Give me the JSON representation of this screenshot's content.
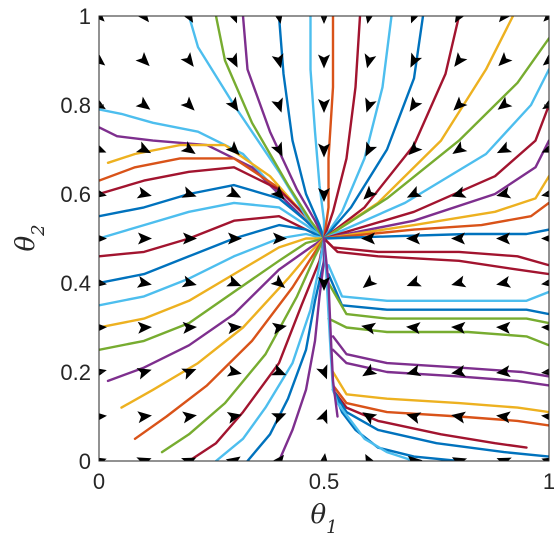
{
  "chart_data": {
    "type": "line",
    "subtype": "phase-portrait",
    "title": "",
    "xlabel": {
      "symbol": "θ",
      "subscript": "1"
    },
    "ylabel": {
      "symbol": "θ",
      "subscript": "2"
    },
    "xlim": [
      0,
      1
    ],
    "ylim": [
      0,
      1
    ],
    "xticks": [
      "0",
      "0.5",
      "1"
    ],
    "yticks": [
      "0",
      "0.2",
      "0.4",
      "0.6",
      "0.8",
      "1"
    ],
    "xtick_values": [
      0,
      0.5,
      1
    ],
    "ytick_values": [
      0,
      0.2,
      0.4,
      0.6,
      0.8,
      1
    ],
    "grid": false,
    "legend": "none",
    "fixed_points": [
      [
        0.5,
        0.5
      ],
      [
        0.5,
        0.32
      ],
      [
        0.52,
        0.15
      ]
    ],
    "colors": [
      "#0072BD",
      "#D95319",
      "#EDB120",
      "#7E2F8E",
      "#77AC30",
      "#4DBEEE",
      "#A2142F"
    ],
    "series": [
      {
        "color": "#4DBEEE",
        "x": [
          0.0,
          0.05,
          0.12,
          0.22,
          0.32,
          0.42,
          0.5
        ],
        "y": [
          0.79,
          0.78,
          0.76,
          0.74,
          0.69,
          0.58,
          0.5
        ]
      },
      {
        "color": "#7E2F8E",
        "x": [
          0.0,
          0.04,
          0.12,
          0.24,
          0.34,
          0.43,
          0.5
        ],
        "y": [
          0.75,
          0.73,
          0.72,
          0.71,
          0.66,
          0.57,
          0.5
        ]
      },
      {
        "color": "#EDB120",
        "x": [
          0.02,
          0.08,
          0.18,
          0.28,
          0.38,
          0.45,
          0.5
        ],
        "y": [
          0.67,
          0.69,
          0.71,
          0.71,
          0.64,
          0.56,
          0.5
        ]
      },
      {
        "color": "#D95319",
        "x": [
          0.0,
          0.08,
          0.18,
          0.3,
          0.39,
          0.46,
          0.5
        ],
        "y": [
          0.63,
          0.66,
          0.68,
          0.68,
          0.62,
          0.55,
          0.5
        ]
      },
      {
        "color": "#A2142F",
        "x": [
          0.0,
          0.1,
          0.2,
          0.3,
          0.4,
          0.46,
          0.5
        ],
        "y": [
          0.6,
          0.63,
          0.65,
          0.66,
          0.61,
          0.55,
          0.5
        ]
      },
      {
        "color": "#0072BD",
        "x": [
          0.0,
          0.1,
          0.2,
          0.3,
          0.4,
          0.46,
          0.5
        ],
        "y": [
          0.55,
          0.57,
          0.6,
          0.62,
          0.59,
          0.54,
          0.5
        ]
      },
      {
        "color": "#4DBEEE",
        "x": [
          0.0,
          0.1,
          0.2,
          0.3,
          0.4,
          0.46,
          0.5
        ],
        "y": [
          0.5,
          0.53,
          0.56,
          0.58,
          0.57,
          0.53,
          0.5
        ]
      },
      {
        "color": "#A2142F",
        "x": [
          0.0,
          0.1,
          0.2,
          0.3,
          0.4,
          0.46,
          0.5
        ],
        "y": [
          0.46,
          0.47,
          0.5,
          0.54,
          0.55,
          0.52,
          0.5
        ]
      },
      {
        "color": "#0072BD",
        "x": [
          0.0,
          0.1,
          0.2,
          0.3,
          0.4,
          0.46,
          0.5
        ],
        "y": [
          0.4,
          0.42,
          0.46,
          0.5,
          0.53,
          0.52,
          0.5
        ]
      },
      {
        "color": "#4DBEEE",
        "x": [
          0.0,
          0.1,
          0.2,
          0.3,
          0.4,
          0.46,
          0.5
        ],
        "y": [
          0.35,
          0.37,
          0.41,
          0.46,
          0.5,
          0.51,
          0.5
        ]
      },
      {
        "color": "#EDB120",
        "x": [
          0.0,
          0.1,
          0.2,
          0.3,
          0.4,
          0.46,
          0.5
        ],
        "y": [
          0.3,
          0.32,
          0.36,
          0.42,
          0.48,
          0.5,
          0.5
        ]
      },
      {
        "color": "#77AC30",
        "x": [
          0.0,
          0.1,
          0.2,
          0.3,
          0.4,
          0.46,
          0.5
        ],
        "y": [
          0.25,
          0.27,
          0.31,
          0.38,
          0.45,
          0.49,
          0.5
        ]
      },
      {
        "color": "#7E2F8E",
        "x": [
          0.02,
          0.1,
          0.2,
          0.3,
          0.4,
          0.47,
          0.5
        ],
        "y": [
          0.18,
          0.21,
          0.26,
          0.33,
          0.43,
          0.48,
          0.5
        ]
      },
      {
        "color": "#EDB120",
        "x": [
          0.05,
          0.12,
          0.22,
          0.32,
          0.42,
          0.47,
          0.5
        ],
        "y": [
          0.12,
          0.16,
          0.22,
          0.3,
          0.41,
          0.47,
          0.5
        ]
      },
      {
        "color": "#D95319",
        "x": [
          0.08,
          0.15,
          0.24,
          0.34,
          0.43,
          0.48,
          0.5
        ],
        "y": [
          0.05,
          0.1,
          0.17,
          0.27,
          0.39,
          0.47,
          0.5
        ]
      },
      {
        "color": "#77AC30",
        "x": [
          0.14,
          0.2,
          0.28,
          0.37,
          0.44,
          0.48,
          0.5
        ],
        "y": [
          0.02,
          0.06,
          0.13,
          0.24,
          0.37,
          0.46,
          0.5
        ]
      },
      {
        "color": "#A2142F",
        "x": [
          0.2,
          0.26,
          0.32,
          0.4,
          0.45,
          0.49,
          0.5
        ],
        "y": [
          0.0,
          0.04,
          0.11,
          0.22,
          0.35,
          0.45,
          0.5
        ]
      },
      {
        "color": "#4DBEEE",
        "x": [
          0.26,
          0.32,
          0.37,
          0.43,
          0.47,
          0.49,
          0.5
        ],
        "y": [
          0.0,
          0.05,
          0.12,
          0.22,
          0.34,
          0.44,
          0.5
        ]
      },
      {
        "color": "#0072BD",
        "x": [
          0.33,
          0.38,
          0.42,
          0.46,
          0.48,
          0.5,
          0.5
        ],
        "y": [
          0.0,
          0.06,
          0.14,
          0.25,
          0.36,
          0.45,
          0.5
        ]
      },
      {
        "color": "#7E2F8E",
        "x": [
          0.4,
          0.43,
          0.46,
          0.48,
          0.49,
          0.5,
          0.5
        ],
        "y": [
          0.0,
          0.07,
          0.16,
          0.27,
          0.37,
          0.45,
          0.5
        ]
      },
      {
        "color": "#4DBEEE",
        "x": [
          0.2,
          0.22,
          0.3,
          0.4,
          0.46,
          0.5
        ],
        "y": [
          1.0,
          0.93,
          0.8,
          0.65,
          0.55,
          0.5
        ]
      },
      {
        "color": "#77AC30",
        "x": [
          0.26,
          0.28,
          0.34,
          0.42,
          0.47,
          0.5
        ],
        "y": [
          1.0,
          0.9,
          0.76,
          0.62,
          0.54,
          0.5
        ]
      },
      {
        "color": "#7E2F8E",
        "x": [
          0.32,
          0.33,
          0.38,
          0.44,
          0.48,
          0.5
        ],
        "y": [
          1.0,
          0.88,
          0.74,
          0.61,
          0.54,
          0.5
        ]
      },
      {
        "color": "#0072BD",
        "x": [
          0.4,
          0.41,
          0.43,
          0.46,
          0.49,
          0.5
        ],
        "y": [
          1.0,
          0.87,
          0.72,
          0.6,
          0.53,
          0.5
        ]
      },
      {
        "color": "#4DBEEE",
        "x": [
          0.47,
          0.47,
          0.48,
          0.49,
          0.5,
          0.5
        ],
        "y": [
          1.0,
          0.88,
          0.74,
          0.62,
          0.54,
          0.5
        ]
      },
      {
        "color": "#D95319",
        "x": [
          0.52,
          0.52,
          0.51,
          0.51,
          0.5
        ],
        "y": [
          1.0,
          0.84,
          0.68,
          0.57,
          0.5
        ]
      },
      {
        "color": "#A2142F",
        "x": [
          0.58,
          0.57,
          0.55,
          0.52,
          0.5
        ],
        "y": [
          1.0,
          0.84,
          0.68,
          0.56,
          0.5
        ]
      },
      {
        "color": "#4DBEEE",
        "x": [
          0.65,
          0.63,
          0.59,
          0.54,
          0.5
        ],
        "y": [
          1.0,
          0.84,
          0.68,
          0.56,
          0.5
        ]
      },
      {
        "color": "#0072BD",
        "x": [
          0.72,
          0.7,
          0.64,
          0.56,
          0.5
        ],
        "y": [
          1.0,
          0.86,
          0.7,
          0.57,
          0.5
        ]
      },
      {
        "color": "#A2142F",
        "x": [
          0.8,
          0.77,
          0.7,
          0.59,
          0.5
        ],
        "y": [
          1.0,
          0.87,
          0.71,
          0.57,
          0.5
        ]
      },
      {
        "color": "#EDB120",
        "x": [
          0.92,
          0.86,
          0.76,
          0.62,
          0.5
        ],
        "y": [
          1.0,
          0.88,
          0.72,
          0.58,
          0.5
        ]
      },
      {
        "color": "#77AC30",
        "x": [
          1.0,
          0.93,
          0.8,
          0.64,
          0.5
        ],
        "y": [
          0.95,
          0.85,
          0.72,
          0.59,
          0.5
        ]
      },
      {
        "color": "#4DBEEE",
        "x": [
          1.0,
          0.96,
          0.86,
          0.68,
          0.5
        ],
        "y": [
          0.88,
          0.8,
          0.69,
          0.58,
          0.5
        ]
      },
      {
        "color": "#A2142F",
        "x": [
          1.0,
          0.97,
          0.88,
          0.7,
          0.5
        ],
        "y": [
          0.8,
          0.72,
          0.64,
          0.56,
          0.5
        ]
      },
      {
        "color": "#7E2F8E",
        "x": [
          1.0,
          0.97,
          0.88,
          0.7,
          0.5
        ],
        "y": [
          0.72,
          0.66,
          0.6,
          0.54,
          0.5
        ]
      },
      {
        "color": "#EDB120",
        "x": [
          1.0,
          0.97,
          0.88,
          0.7,
          0.5
        ],
        "y": [
          0.64,
          0.59,
          0.56,
          0.53,
          0.5
        ]
      },
      {
        "color": "#D95319",
        "x": [
          1.0,
          0.96,
          0.85,
          0.7,
          0.5
        ],
        "y": [
          0.58,
          0.55,
          0.53,
          0.52,
          0.5
        ]
      },
      {
        "color": "#0072BD",
        "x": [
          1.0,
          0.95,
          0.82,
          0.65,
          0.5
        ],
        "y": [
          0.52,
          0.51,
          0.51,
          0.505,
          0.5
        ]
      },
      {
        "color": "#A2142F",
        "x": [
          1.0,
          0.93,
          0.8,
          0.62,
          0.52,
          0.5
        ],
        "y": [
          0.44,
          0.46,
          0.47,
          0.47,
          0.48,
          0.5
        ]
      },
      {
        "color": "#A2142F",
        "x": [
          1.0,
          0.93,
          0.8,
          0.62,
          0.53,
          0.5
        ],
        "y": [
          0.42,
          0.43,
          0.45,
          0.46,
          0.47,
          0.5
        ]
      },
      {
        "color": "#4DBEEE",
        "x": [
          1.0,
          0.95,
          0.82,
          0.64,
          0.54,
          0.51
        ],
        "y": [
          0.38,
          0.36,
          0.36,
          0.36,
          0.37,
          0.44
        ]
      },
      {
        "color": "#0072BD",
        "x": [
          1.0,
          0.95,
          0.82,
          0.64,
          0.54,
          0.51
        ],
        "y": [
          0.33,
          0.34,
          0.34,
          0.34,
          0.35,
          0.42
        ]
      },
      {
        "color": "#77AC30",
        "x": [
          1.0,
          0.95,
          0.82,
          0.64,
          0.55,
          0.51
        ],
        "y": [
          0.31,
          0.32,
          0.32,
          0.32,
          0.33,
          0.4
        ]
      },
      {
        "color": "#77AC30",
        "x": [
          1.0,
          0.95,
          0.82,
          0.64,
          0.55,
          0.51
        ],
        "y": [
          0.26,
          0.28,
          0.29,
          0.29,
          0.3,
          0.32
        ]
      },
      {
        "color": "#7E2F8E",
        "x": [
          1.0,
          0.94,
          0.8,
          0.64,
          0.55,
          0.52
        ],
        "y": [
          0.19,
          0.2,
          0.21,
          0.22,
          0.24,
          0.28
        ]
      },
      {
        "color": "#7E2F8E",
        "x": [
          1.0,
          0.93,
          0.8,
          0.64,
          0.55,
          0.52
        ],
        "y": [
          0.17,
          0.18,
          0.19,
          0.2,
          0.22,
          0.25
        ]
      },
      {
        "color": "#EDB120",
        "x": [
          1.0,
          0.93,
          0.8,
          0.64,
          0.55,
          0.52
        ],
        "y": [
          0.11,
          0.12,
          0.13,
          0.14,
          0.15,
          0.2
        ]
      },
      {
        "color": "#D95319",
        "x": [
          1.0,
          0.93,
          0.8,
          0.64,
          0.55,
          0.52
        ],
        "y": [
          0.08,
          0.09,
          0.1,
          0.11,
          0.13,
          0.17
        ]
      },
      {
        "color": "#A2142F",
        "x": [
          0.95,
          0.88,
          0.76,
          0.62,
          0.55,
          0.52
        ],
        "y": [
          0.03,
          0.04,
          0.06,
          0.09,
          0.12,
          0.16
        ]
      },
      {
        "color": "#0072BD",
        "x": [
          1.0,
          0.9,
          0.75,
          0.62,
          0.55,
          0.52
        ],
        "y": [
          0.01,
          0.02,
          0.04,
          0.07,
          0.11,
          0.16
        ]
      },
      {
        "color": "#0072BD",
        "x": [
          0.8,
          0.7,
          0.62,
          0.57,
          0.54,
          0.52
        ],
        "y": [
          0.0,
          0.01,
          0.03,
          0.07,
          0.11,
          0.16
        ]
      },
      {
        "color": "#4DBEEE",
        "x": [
          0.7,
          0.64,
          0.59,
          0.56,
          0.53,
          0.52
        ],
        "y": [
          0.0,
          0.02,
          0.05,
          0.09,
          0.13,
          0.16
        ]
      },
      {
        "color": "#4DBEEE",
        "x": [
          0.52,
          0.515,
          0.51,
          0.505,
          0.5
        ],
        "y": [
          0.16,
          0.24,
          0.33,
          0.42,
          0.5
        ]
      },
      {
        "color": "#7E2F8E",
        "x": [
          0.53,
          0.52,
          0.515,
          0.51,
          0.5
        ],
        "y": [
          0.1,
          0.18,
          0.28,
          0.4,
          0.5
        ]
      }
    ]
  }
}
